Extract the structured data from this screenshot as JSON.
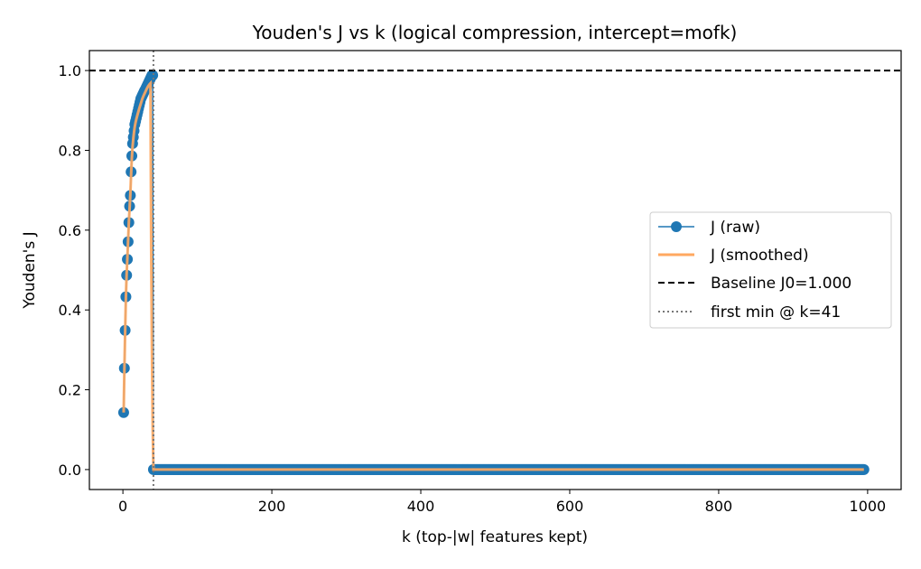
{
  "chart_data": {
    "type": "line",
    "title": "Youden's J vs k (logical compression, intercept=mofk)",
    "xlabel": "k (top-|w| features kept)",
    "ylabel": "Youden's J",
    "xlim": [
      -45,
      1045
    ],
    "ylim": [
      -0.05,
      1.05
    ],
    "xticks": [
      0,
      200,
      400,
      600,
      800,
      1000
    ],
    "xtick_labels": [
      "0",
      "200",
      "400",
      "600",
      "800",
      "1000"
    ],
    "yticks": [
      0.0,
      0.2,
      0.4,
      0.6,
      0.8,
      1.0
    ],
    "ytick_labels": [
      "0.0",
      "0.2",
      "0.4",
      "0.6",
      "0.8",
      "1.0"
    ],
    "grid": false,
    "legend_position": "center-right",
    "series": [
      {
        "name": "J (raw)",
        "style": "line-with-circle-markers",
        "color": "#1f77b4",
        "early_points": [
          [
            1,
            0.143
          ],
          [
            2,
            0.254
          ],
          [
            3,
            0.349
          ],
          [
            4,
            0.433
          ],
          [
            5,
            0.487
          ],
          [
            6,
            0.527
          ],
          [
            7,
            0.571
          ],
          [
            8,
            0.619
          ],
          [
            9,
            0.66
          ],
          [
            10,
            0.687
          ],
          [
            11,
            0.746
          ],
          [
            12,
            0.786
          ],
          [
            13,
            0.817
          ],
          [
            14,
            0.833
          ],
          [
            15,
            0.849
          ],
          [
            16,
            0.865
          ],
          [
            17,
            0.873
          ],
          [
            18,
            0.881
          ],
          [
            19,
            0.889
          ],
          [
            20,
            0.897
          ],
          [
            21,
            0.905
          ],
          [
            22,
            0.913
          ],
          [
            23,
            0.921
          ],
          [
            24,
            0.929
          ],
          [
            25,
            0.933
          ],
          [
            26,
            0.937
          ],
          [
            27,
            0.941
          ],
          [
            28,
            0.945
          ],
          [
            29,
            0.949
          ],
          [
            30,
            0.952
          ],
          [
            31,
            0.956
          ],
          [
            32,
            0.96
          ],
          [
            33,
            0.964
          ],
          [
            34,
            0.968
          ],
          [
            35,
            0.972
          ],
          [
            36,
            0.976
          ],
          [
            37,
            0.98
          ],
          [
            38,
            0.984
          ],
          [
            39,
            0.988
          ],
          [
            40,
            0.988
          ]
        ],
        "zero_from_k": 41,
        "zero_to_k": 995,
        "zero_value": 0.0
      },
      {
        "name": "J (smoothed)",
        "style": "line",
        "color": "#ffa860",
        "points": [
          [
            1,
            0.143
          ],
          [
            2,
            0.25
          ],
          [
            3,
            0.345
          ],
          [
            4,
            0.43
          ],
          [
            5,
            0.49
          ],
          [
            6,
            0.53
          ],
          [
            7,
            0.575
          ],
          [
            8,
            0.62
          ],
          [
            9,
            0.655
          ],
          [
            10,
            0.69
          ],
          [
            11,
            0.74
          ],
          [
            12,
            0.78
          ],
          [
            13,
            0.81
          ],
          [
            14,
            0.83
          ],
          [
            15,
            0.847
          ],
          [
            16,
            0.86
          ],
          [
            17,
            0.87
          ],
          [
            18,
            0.878
          ],
          [
            20,
            0.892
          ],
          [
            22,
            0.905
          ],
          [
            24,
            0.917
          ],
          [
            26,
            0.929
          ],
          [
            28,
            0.938
          ],
          [
            30,
            0.946
          ],
          [
            32,
            0.954
          ],
          [
            34,
            0.961
          ],
          [
            36,
            0.966
          ],
          [
            37,
            0.968
          ],
          [
            38,
            0.55
          ],
          [
            39,
            0.3
          ],
          [
            40,
            0.1
          ],
          [
            41,
            0.0
          ],
          [
            995,
            0.0
          ]
        ]
      },
      {
        "name": "Baseline J0=1.000",
        "style": "dashed-hline",
        "color": "#000000",
        "y": 1.0
      },
      {
        "name": "first min @ k=41",
        "style": "dotted-vline",
        "color": "#777777",
        "x": 41
      }
    ]
  }
}
